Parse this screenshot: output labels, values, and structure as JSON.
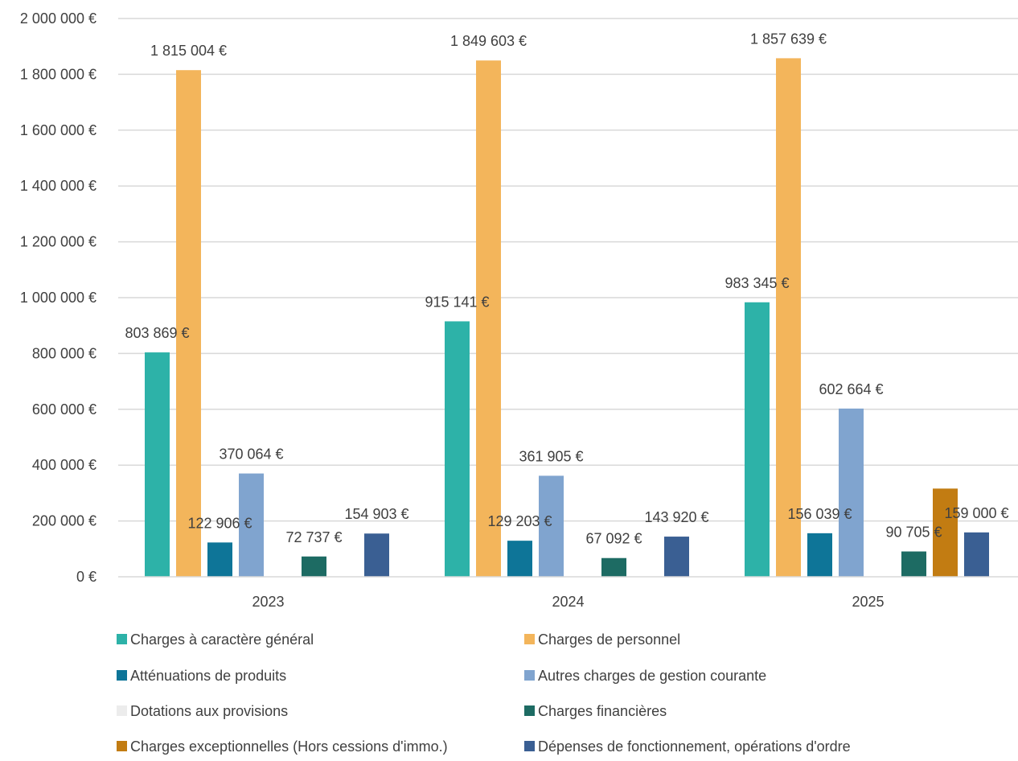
{
  "chart_data": {
    "type": "bar",
    "title": "",
    "xlabel": "",
    "ylabel": "",
    "categories": [
      "2023",
      "2024",
      "2025"
    ],
    "ylim": [
      0,
      2000000
    ],
    "y_ticks": [
      0,
      200000,
      400000,
      600000,
      800000,
      1000000,
      1200000,
      1400000,
      1600000,
      1800000,
      2000000
    ],
    "y_tick_labels": [
      "0 €",
      "200 000 €",
      "400 000 €",
      "600 000 €",
      "800 000 €",
      "1 000 000 €",
      "1 200 000 €",
      "1 400 000 €",
      "1 600 000 €",
      "1 800 000 €",
      "2 000 000 €"
    ],
    "grid": true,
    "legend_position": "bottom",
    "series": [
      {
        "name": "Charges à caractère général",
        "color": "#2db2a8",
        "values": [
          803869,
          915141,
          983345
        ],
        "labels": [
          "803 869 €",
          "915 141 €",
          "983 345 €"
        ]
      },
      {
        "name": "Charges de personnel",
        "color": "#f3b55b",
        "values": [
          1815004,
          1849603,
          1857639
        ],
        "labels": [
          "1 815 004 €",
          "1 849 603 €",
          "1 857 639 €"
        ]
      },
      {
        "name": "Atténuations de produits",
        "color": "#0e7598",
        "values": [
          122906,
          129203,
          156039
        ],
        "labels": [
          "122 906 €",
          "129 203 €",
          "156 039 €"
        ]
      },
      {
        "name": "Autres charges de gestion courante",
        "color": "#80a4cf",
        "values": [
          370064,
          361905,
          602664
        ],
        "labels": [
          "370 064 €",
          "361 905 €",
          "602 664 €"
        ]
      },
      {
        "name": "Dotations aux provisions",
        "color": "#ececec",
        "values": [
          0,
          0,
          0
        ],
        "labels": [
          "",
          "",
          ""
        ]
      },
      {
        "name": "Charges financières",
        "color": "#1d6b63",
        "values": [
          72737,
          67092,
          90705
        ],
        "labels": [
          "72 737 €",
          "67 092 €",
          "90 705 €"
        ]
      },
      {
        "name": "Charges exceptionnelles  (Hors cessions d'immo.)",
        "color": "#c27c12",
        "values": [
          0,
          0,
          316000
        ],
        "labels": [
          "",
          "",
          ""
        ]
      },
      {
        "name": "Dépenses de fonctionnement, opérations d'ordre",
        "color": "#3a5f93",
        "values": [
          154903,
          143920,
          159000
        ],
        "labels": [
          "154 903 €",
          "143 920 €",
          "159 000 €"
        ]
      }
    ]
  }
}
